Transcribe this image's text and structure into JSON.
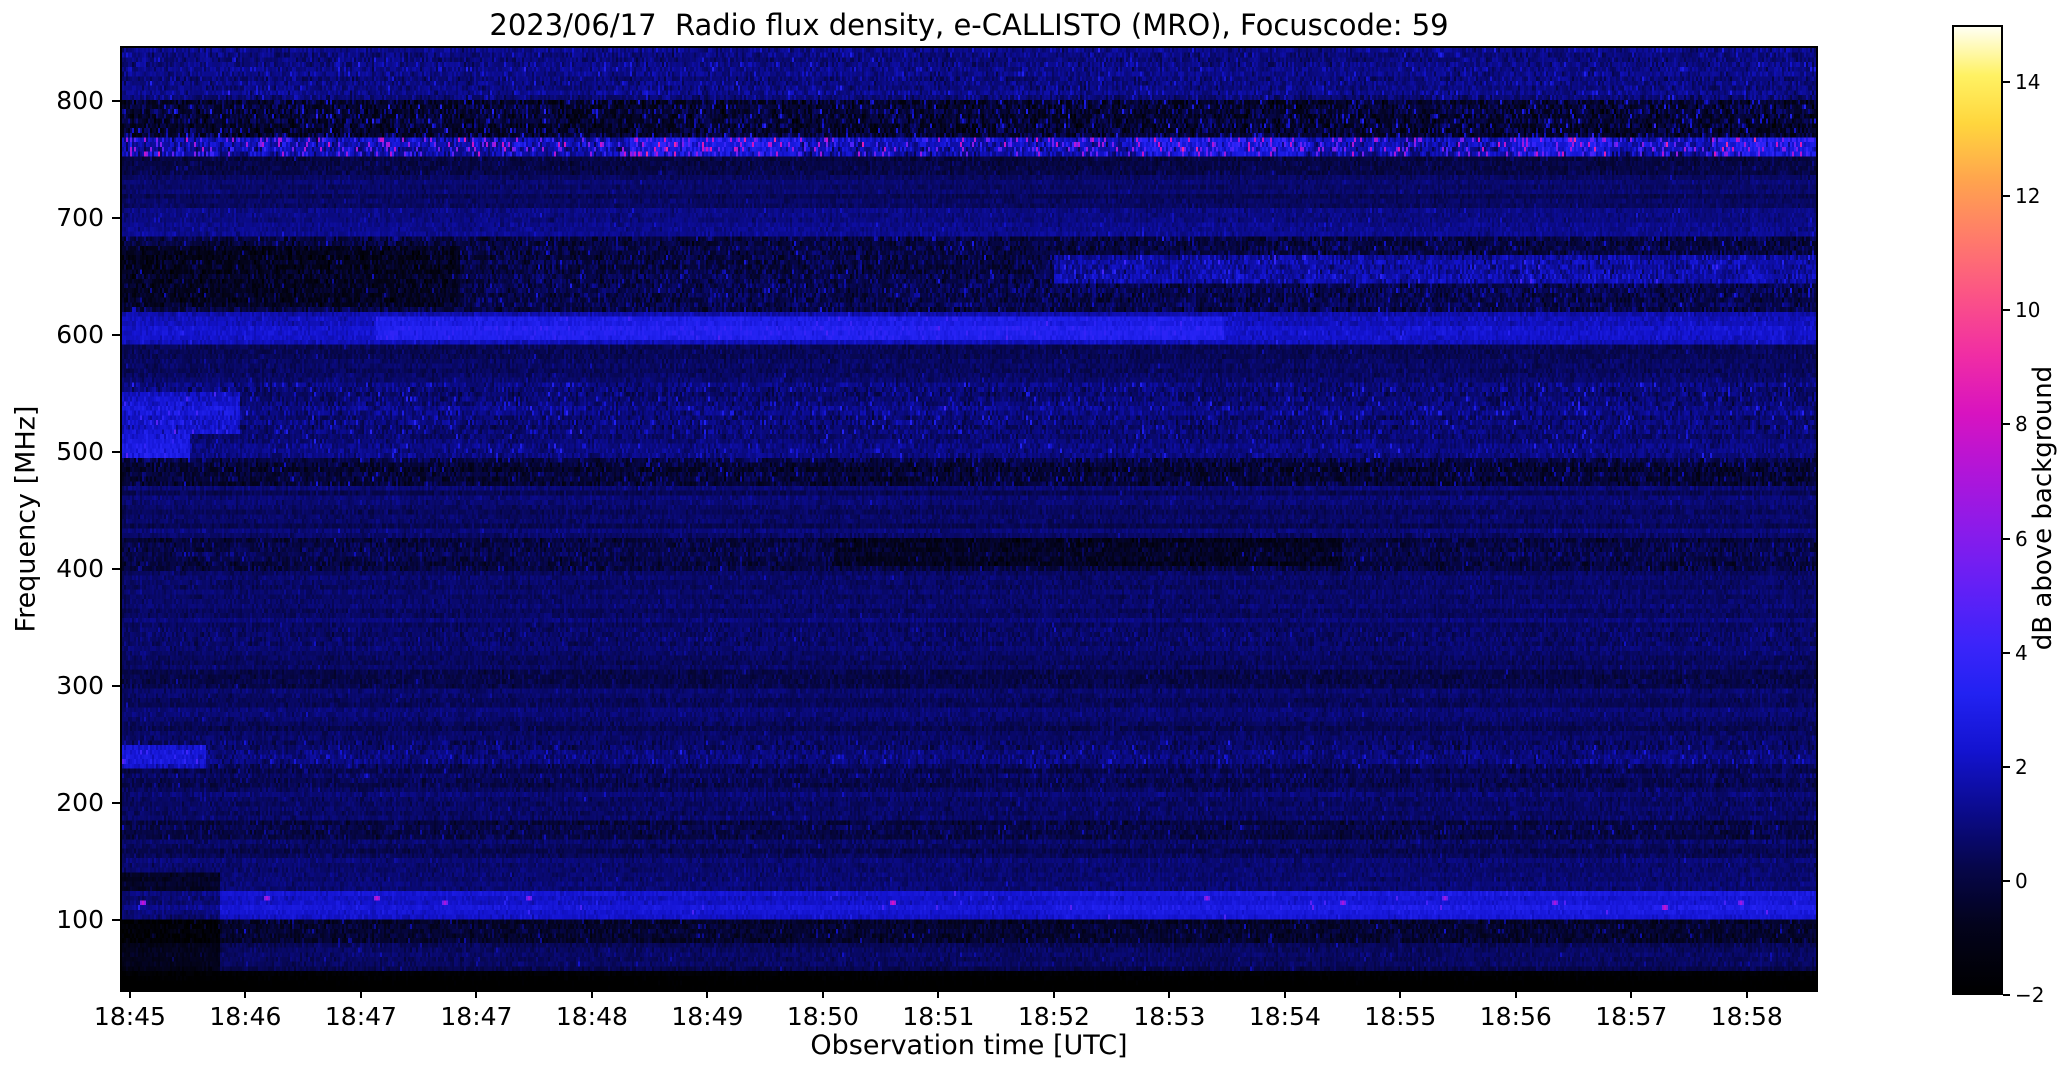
{
  "chart_data": {
    "type": "heatmap",
    "title": "2023/06/17  Radio flux density, e-CALLISTO (MRO), Focuscode: 59",
    "xlabel": "Observation time [UTC]",
    "ylabel": "Frequency [MHz]",
    "colorbar_label": "dB above background",
    "x_tick_labels": [
      "18:45",
      "18:46",
      "18:47",
      "18:47",
      "18:48",
      "18:49",
      "18:50",
      "18:51",
      "18:52",
      "18:53",
      "18:54",
      "18:55",
      "18:56",
      "18:57",
      "18:58"
    ],
    "y_tick_values": [
      100,
      200,
      300,
      400,
      500,
      600,
      700,
      800
    ],
    "colorbar_tick_values": [
      -2,
      0,
      2,
      4,
      6,
      8,
      10,
      12,
      14
    ],
    "colorbar_tick_labels": [
      "−2",
      "0",
      "2",
      "4",
      "6",
      "8",
      "10",
      "12",
      "14"
    ],
    "time_start": "18:45",
    "time_end": "18:59",
    "freq_range_mhz": [
      40,
      845
    ],
    "value_range_db": [
      -2,
      15
    ],
    "background_value_db": 0.55,
    "grid": false,
    "legend": "colorbar-right",
    "colormap": {
      "name": "black-blue-magenta-yellow-white",
      "stops": [
        {
          "p": 0.0,
          "color": "#000000"
        },
        {
          "p": 0.07,
          "color": "#03031c"
        },
        {
          "p": 0.13,
          "color": "#06064a"
        },
        {
          "p": 0.19,
          "color": "#0b0b8e"
        },
        {
          "p": 0.25,
          "color": "#1313cf"
        },
        {
          "p": 0.31,
          "color": "#2222f2"
        },
        {
          "p": 0.36,
          "color": "#3b24fa"
        },
        {
          "p": 0.42,
          "color": "#6320f6"
        },
        {
          "p": 0.48,
          "color": "#8b1bea"
        },
        {
          "p": 0.54,
          "color": "#b115d8"
        },
        {
          "p": 0.6,
          "color": "#d813c0"
        },
        {
          "p": 0.66,
          "color": "#f02da4"
        },
        {
          "p": 0.72,
          "color": "#fb5287"
        },
        {
          "p": 0.78,
          "color": "#ff7a6b"
        },
        {
          "p": 0.84,
          "color": "#ffa34e"
        },
        {
          "p": 0.9,
          "color": "#ffd63d"
        },
        {
          "p": 0.95,
          "color": "#fff263"
        },
        {
          "p": 1.0,
          "color": "#fffff2"
        }
      ]
    },
    "bands": [
      {
        "f": [
          40,
          58
        ],
        "add": -2.6,
        "noise": 0.25,
        "speckle_p": 0.0,
        "speckle_amp": 0.0,
        "note": "solid black strip at bottom"
      },
      {
        "f": [
          58,
          80
        ],
        "add": -0.1,
        "noise": 0.55,
        "speckle_p": 0.02,
        "speckle_amp": 1.2
      },
      {
        "f": [
          80,
          100
        ],
        "add": -1.0,
        "noise": 0.95,
        "speckle_p": 0.06,
        "speckle_amp": 2.0,
        "note": "dark speckled band"
      },
      {
        "f": [
          100,
          126
        ],
        "add": 1.7,
        "noise": 0.6,
        "speckle_p": 0.012,
        "speckle_amp": 2.2,
        "note": "bright blue band ~110-120 MHz with pink RFI dots"
      },
      {
        "f": [
          126,
          152
        ],
        "add": 0.2,
        "noise": 0.55,
        "speckle_p": 0.01,
        "speckle_amp": 1.0
      },
      {
        "f": [
          152,
          168
        ],
        "add": 0.0,
        "noise": 0.6,
        "speckle_p": 0.02,
        "speckle_amp": 1.0
      },
      {
        "f": [
          168,
          186
        ],
        "add": -0.5,
        "noise": 0.85,
        "speckle_p": 0.05,
        "speckle_amp": 1.6,
        "note": "dark striped band ~175 MHz"
      },
      {
        "f": [
          186,
          212
        ],
        "add": 0.0,
        "noise": 0.6,
        "speckle_p": 0.02,
        "speckle_amp": 1.0
      },
      {
        "f": [
          212,
          230
        ],
        "add": -0.3,
        "noise": 0.8,
        "speckle_p": 0.03,
        "speckle_amp": 1.2
      },
      {
        "f": [
          230,
          252
        ],
        "add": 0.2,
        "noise": 0.9,
        "speckle_p": 0.04,
        "speckle_amp": 1.8,
        "note": "speckled band ~240 MHz"
      },
      {
        "f": [
          252,
          296
        ],
        "add": 0.05,
        "noise": 0.55,
        "speckle_p": 0.01,
        "speckle_amp": 1.0
      },
      {
        "f": [
          296,
          312
        ],
        "add": -0.3,
        "noise": 0.7,
        "speckle_p": 0.02,
        "speckle_amp": 1.0
      },
      {
        "f": [
          312,
          332
        ],
        "add": 0.05,
        "noise": 0.55,
        "speckle_p": 0.01,
        "speckle_amp": 1.0
      },
      {
        "f": [
          332,
          350
        ],
        "add": 0.1,
        "noise": 0.75,
        "speckle_p": 0.03,
        "speckle_amp": 1.2
      },
      {
        "f": [
          350,
          400
        ],
        "add": 0.05,
        "noise": 0.55,
        "speckle_p": 0.01,
        "speckle_amp": 1.0
      },
      {
        "f": [
          400,
          428
        ],
        "add": -0.5,
        "noise": 1.0,
        "speckle_p": 0.05,
        "speckle_amp": 1.5,
        "note": "dark blotchy band ~410 MHz"
      },
      {
        "f": [
          428,
          470
        ],
        "add": 0.05,
        "noise": 0.55,
        "speckle_p": 0.01,
        "speckle_amp": 1.0
      },
      {
        "f": [
          470,
          496
        ],
        "add": -0.7,
        "noise": 1.15,
        "speckle_p": 0.08,
        "speckle_amp": 2.0,
        "note": "dark dense speckled band ~480 MHz"
      },
      {
        "f": [
          496,
          516
        ],
        "add": 0.35,
        "noise": 0.8,
        "speckle_p": 0.04,
        "speckle_amp": 2.0
      },
      {
        "f": [
          516,
          560
        ],
        "add": 0.35,
        "noise": 1.0,
        "speckle_p": 0.06,
        "speckle_amp": 2.2,
        "note": "mottled band ~530-545 MHz"
      },
      {
        "f": [
          560,
          592
        ],
        "add": 0.0,
        "noise": 0.6,
        "speckle_p": 0.02,
        "speckle_amp": 1.2
      },
      {
        "f": [
          592,
          618
        ],
        "add": 1.5,
        "noise": 0.65,
        "speckle_p": 0.02,
        "speckle_amp": 1.2,
        "note": "bright blue band ~600-610 MHz"
      },
      {
        "f": [
          618,
          682
        ],
        "add": -0.45,
        "noise": 1.25,
        "speckle_p": 0.06,
        "speckle_amp": 2.0,
        "note": "dark blotchy band 630-670 MHz with bright streaks"
      },
      {
        "f": [
          682,
          708
        ],
        "add": 0.55,
        "noise": 0.6,
        "speckle_p": 0.02,
        "speckle_amp": 1.2,
        "note": "faint bright row ~700 MHz"
      },
      {
        "f": [
          708,
          738
        ],
        "add": 0.1,
        "noise": 0.5,
        "speckle_p": 0.01,
        "speckle_amp": 1.0
      },
      {
        "f": [
          738,
          752
        ],
        "add": -0.5,
        "noise": 0.7,
        "speckle_p": 0.02,
        "speckle_amp": 1.2
      },
      {
        "f": [
          752,
          770
        ],
        "add": 1.2,
        "noise": 1.6,
        "speckle_p": 0.22,
        "speckle_amp": 6.0,
        "note": "strong RFI band ~760 MHz, pink/magenta speckles"
      },
      {
        "f": [
          770,
          802
        ],
        "add": -0.9,
        "noise": 1.7,
        "speckle_p": 0.12,
        "speckle_amp": 3.0,
        "note": "black heavily-speckled band above RFI line"
      },
      {
        "f": [
          802,
          845
        ],
        "add": 0.45,
        "noise": 0.95,
        "speckle_p": 0.05,
        "speckle_amp": 1.8
      }
    ],
    "patches": [
      {
        "t": [
          0.0,
          0.058
        ],
        "f": [
          58,
          142
        ],
        "add": -1.4,
        "note": "dark block 18:45-18:46 below 140 MHz"
      },
      {
        "t": [
          0.0,
          0.07
        ],
        "f": [
          516,
          552
        ],
        "add": 1.4,
        "note": "bright cluster at left edge ~530 MHz"
      },
      {
        "t": [
          0.0,
          0.04
        ],
        "f": [
          494,
          516
        ],
        "add": 1.8,
        "note": "bright cluster at left edge ~505 MHz"
      },
      {
        "t": [
          0.0,
          0.05
        ],
        "f": [
          228,
          250
        ],
        "add": 1.6,
        "note": "bright cluster at left edge ~240 MHz"
      },
      {
        "t": [
          0.15,
          0.65
        ],
        "f": [
          596,
          614
        ],
        "add": 1.0,
        "note": "prominent bright streak ~600 MHz, 18:47-18:53"
      },
      {
        "t": [
          0.55,
          1.0
        ],
        "f": [
          645,
          668
        ],
        "add": 1.5,
        "note": "bright streak ~655 MHz on right half"
      },
      {
        "t": [
          0.0,
          0.2
        ],
        "f": [
          624,
          676
        ],
        "add": -0.9,
        "note": "dark blotch 18:45-18:47 at 630-670 MHz"
      },
      {
        "t": [
          0.42,
          0.72
        ],
        "f": [
          402,
          426
        ],
        "add": -0.8,
        "note": "dark blotch mid-plot ~410 MHz"
      },
      {
        "t": [
          0.55,
          1.0
        ],
        "f": [
          100,
          126
        ],
        "add": 0.35,
        "note": "110 MHz band brighter on right half"
      },
      {
        "t": [
          0.3,
          0.4
        ],
        "f": [
          752,
          770
        ],
        "add": 1.0,
        "note": "pink RFI cluster ~18:49"
      },
      {
        "t": [
          0.6,
          0.7
        ],
        "f": [
          752,
          770
        ],
        "add": 0.9,
        "note": "pink RFI cluster ~18:53"
      },
      {
        "t": [
          0.82,
          0.88
        ],
        "f": [
          752,
          770
        ],
        "add": 0.9,
        "note": "pink RFI cluster ~18:56"
      },
      {
        "t": [
          0.94,
          1.0
        ],
        "f": [
          752,
          770
        ],
        "add": 1.1,
        "note": "pink RFI cluster ~18:58"
      }
    ],
    "bright_spots": [
      {
        "t": 0.012,
        "f": 116,
        "v": 7.5
      },
      {
        "t": 0.085,
        "f": 119,
        "v": 7.0
      },
      {
        "t": 0.15,
        "f": 120,
        "v": 7.5
      },
      {
        "t": 0.19,
        "f": 118,
        "v": 6.8
      },
      {
        "t": 0.24,
        "f": 120,
        "v": 6.5
      },
      {
        "t": 0.455,
        "f": 118,
        "v": 8.0
      },
      {
        "t": 0.64,
        "f": 120,
        "v": 6.5
      },
      {
        "t": 0.72,
        "f": 117,
        "v": 6.8
      },
      {
        "t": 0.78,
        "f": 119,
        "v": 6.5
      },
      {
        "t": 0.845,
        "f": 116,
        "v": 6.8
      },
      {
        "t": 0.91,
        "f": 114,
        "v": 7.5
      },
      {
        "t": 0.955,
        "f": 117,
        "v": 6.5
      }
    ]
  }
}
